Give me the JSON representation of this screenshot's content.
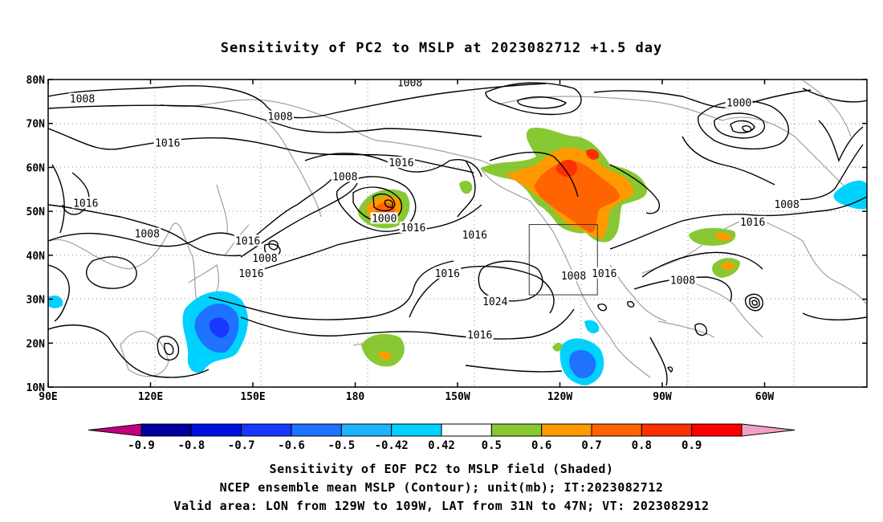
{
  "title": "Sensitivity of PC2 to MSLP at 2023082712 +1.5 day",
  "map": {
    "lat_labels": [
      "80N",
      "70N",
      "60N",
      "50N",
      "40N",
      "30N",
      "20N",
      "10N"
    ],
    "lon_labels": [
      "90E",
      "120E",
      "150E",
      "180",
      "150W",
      "120W",
      "90W",
      "60W"
    ],
    "lon_range": [
      90,
      330
    ],
    "lat_range": [
      10,
      80
    ],
    "grid": "dotted",
    "valid_box": {
      "lon": [
        -129,
        -109
      ],
      "lat": [
        31,
        47
      ]
    },
    "contour_labels": [
      {
        "text": "1008",
        "lon": 100,
        "lat": 75.5
      },
      {
        "text": "1008",
        "lon": 158,
        "lat": 71.5
      },
      {
        "text": "1016",
        "lon": 125,
        "lat": 65.5
      },
      {
        "text": "1008",
        "lon": 196,
        "lat": 79.2
      },
      {
        "text": "1000",
        "lon": 292.5,
        "lat": 74.6
      },
      {
        "text": "1016",
        "lon": 101,
        "lat": 51.8
      },
      {
        "text": "1008",
        "lon": 177,
        "lat": 57.8
      },
      {
        "text": "1016",
        "lon": 193.5,
        "lat": 61
      },
      {
        "text": "1000",
        "lon": 188.5,
        "lat": 48.3
      },
      {
        "text": "1016",
        "lon": 197,
        "lat": 46.2
      },
      {
        "text": "1008",
        "lon": 119,
        "lat": 44.8
      },
      {
        "text": "1016",
        "lon": 148.5,
        "lat": 43.2
      },
      {
        "text": "1008",
        "lon": 153.5,
        "lat": 39.2
      },
      {
        "text": "1016",
        "lon": 149.5,
        "lat": 35.8
      },
      {
        "text": "1016",
        "lon": 215,
        "lat": 44.5
      },
      {
        "text": "1016",
        "lon": 207,
        "lat": 35.8
      },
      {
        "text": "1024",
        "lon": 221,
        "lat": 29.4
      },
      {
        "text": "1008",
        "lon": 244,
        "lat": 35.2
      },
      {
        "text": "1016",
        "lon": 253,
        "lat": 35.8
      },
      {
        "text": "1008",
        "lon": 276,
        "lat": 34.2
      },
      {
        "text": "1016",
        "lon": 216.5,
        "lat": 21.8
      },
      {
        "text": "1008",
        "lon": 306.5,
        "lat": 51.5
      },
      {
        "text": "1016",
        "lon": 296.5,
        "lat": 47.5
      }
    ]
  },
  "colorbar": {
    "labels": [
      "-0.9",
      "-0.8",
      "-0.7",
      "-0.6",
      "-0.5",
      "-0.42",
      "0.42",
      "0.5",
      "0.6",
      "0.7",
      "0.8",
      "0.9"
    ],
    "colors": [
      "#c00080",
      "#0000a0",
      "#0010e0",
      "#1838ff",
      "#1e72ff",
      "#1cb4ff",
      "#00d2ff",
      "#ffffff",
      "#88c832",
      "#ff9a00",
      "#ff6400",
      "#ff3000",
      "#ff0000",
      "#f2a0c4"
    ]
  },
  "captions": {
    "line1": "Sensitivity of EOF PC2 to MSLP field (Shaded)",
    "line2": "NCEP ensemble mean MSLP (Contour); unit(mb); IT:2023082712",
    "line3": "Valid area: LON from 129W to 109W, LAT from 31N to 47N; VT: 2023082912"
  }
}
